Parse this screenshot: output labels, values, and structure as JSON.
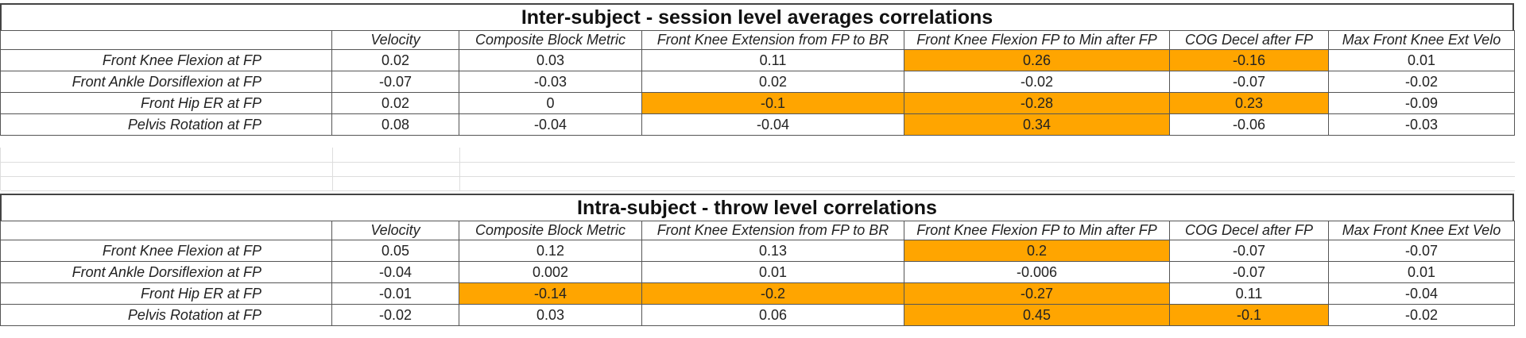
{
  "tables": [
    {
      "title": "Inter-subject - session level averages correlations",
      "columns": [
        "Velocity",
        "Composite Block Metric",
        "Front Knee Extension from FP to BR",
        "Front Knee Flexion FP to Min after FP",
        "COG Decel after FP",
        "Max Front Knee Ext Velo"
      ],
      "rows": [
        {
          "label": "Front Knee Flexion at FP",
          "values": [
            "0.02",
            "0.03",
            "0.11",
            "0.26",
            "-0.16",
            "0.01"
          ],
          "highlight": [
            false,
            false,
            false,
            true,
            true,
            false
          ]
        },
        {
          "label": "Front Ankle Dorsiflexion at FP",
          "values": [
            "-0.07",
            "-0.03",
            "0.02",
            "-0.02",
            "-0.07",
            "-0.02"
          ],
          "highlight": [
            false,
            false,
            false,
            false,
            false,
            false
          ]
        },
        {
          "label": "Front Hip ER at FP",
          "values": [
            "0.02",
            "0",
            "-0.1",
            "-0.28",
            "0.23",
            "-0.09"
          ],
          "highlight": [
            false,
            false,
            true,
            true,
            true,
            false
          ]
        },
        {
          "label": "Pelvis Rotation at FP",
          "values": [
            "0.08",
            "-0.04",
            "-0.04",
            "0.34",
            "-0.06",
            "-0.03"
          ],
          "highlight": [
            false,
            false,
            false,
            true,
            false,
            false
          ]
        }
      ]
    },
    {
      "title": "Intra-subject - throw level correlations",
      "columns": [
        "Velocity",
        "Composite Block Metric",
        "Front Knee Extension from FP to BR",
        "Front Knee Flexion FP to Min after FP",
        "COG Decel after FP",
        "Max Front Knee Ext Velo"
      ],
      "rows": [
        {
          "label": "Front Knee Flexion at FP",
          "values": [
            "0.05",
            "0.12",
            "0.13",
            "0.2",
            "-0.07",
            "-0.07"
          ],
          "highlight": [
            false,
            false,
            false,
            true,
            false,
            false
          ]
        },
        {
          "label": "Front Ankle Dorsiflexion at FP",
          "values": [
            "-0.04",
            "0.002",
            "0.01",
            "-0.006",
            "-0.07",
            "0.01"
          ],
          "highlight": [
            false,
            false,
            false,
            false,
            false,
            false
          ]
        },
        {
          "label": "Front Hip ER at FP",
          "values": [
            "-0.01",
            "-0.14",
            "-0.2",
            "-0.27",
            "0.11",
            "-0.04"
          ],
          "highlight": [
            false,
            true,
            true,
            true,
            false,
            false
          ]
        },
        {
          "label": "Pelvis Rotation at FP",
          "values": [
            "-0.02",
            "0.03",
            "0.06",
            "0.45",
            "-0.1",
            "-0.02"
          ],
          "highlight": [
            false,
            false,
            false,
            true,
            true,
            false
          ]
        }
      ]
    }
  ],
  "colors": {
    "highlight": "#FFA500",
    "border": "#555555"
  }
}
